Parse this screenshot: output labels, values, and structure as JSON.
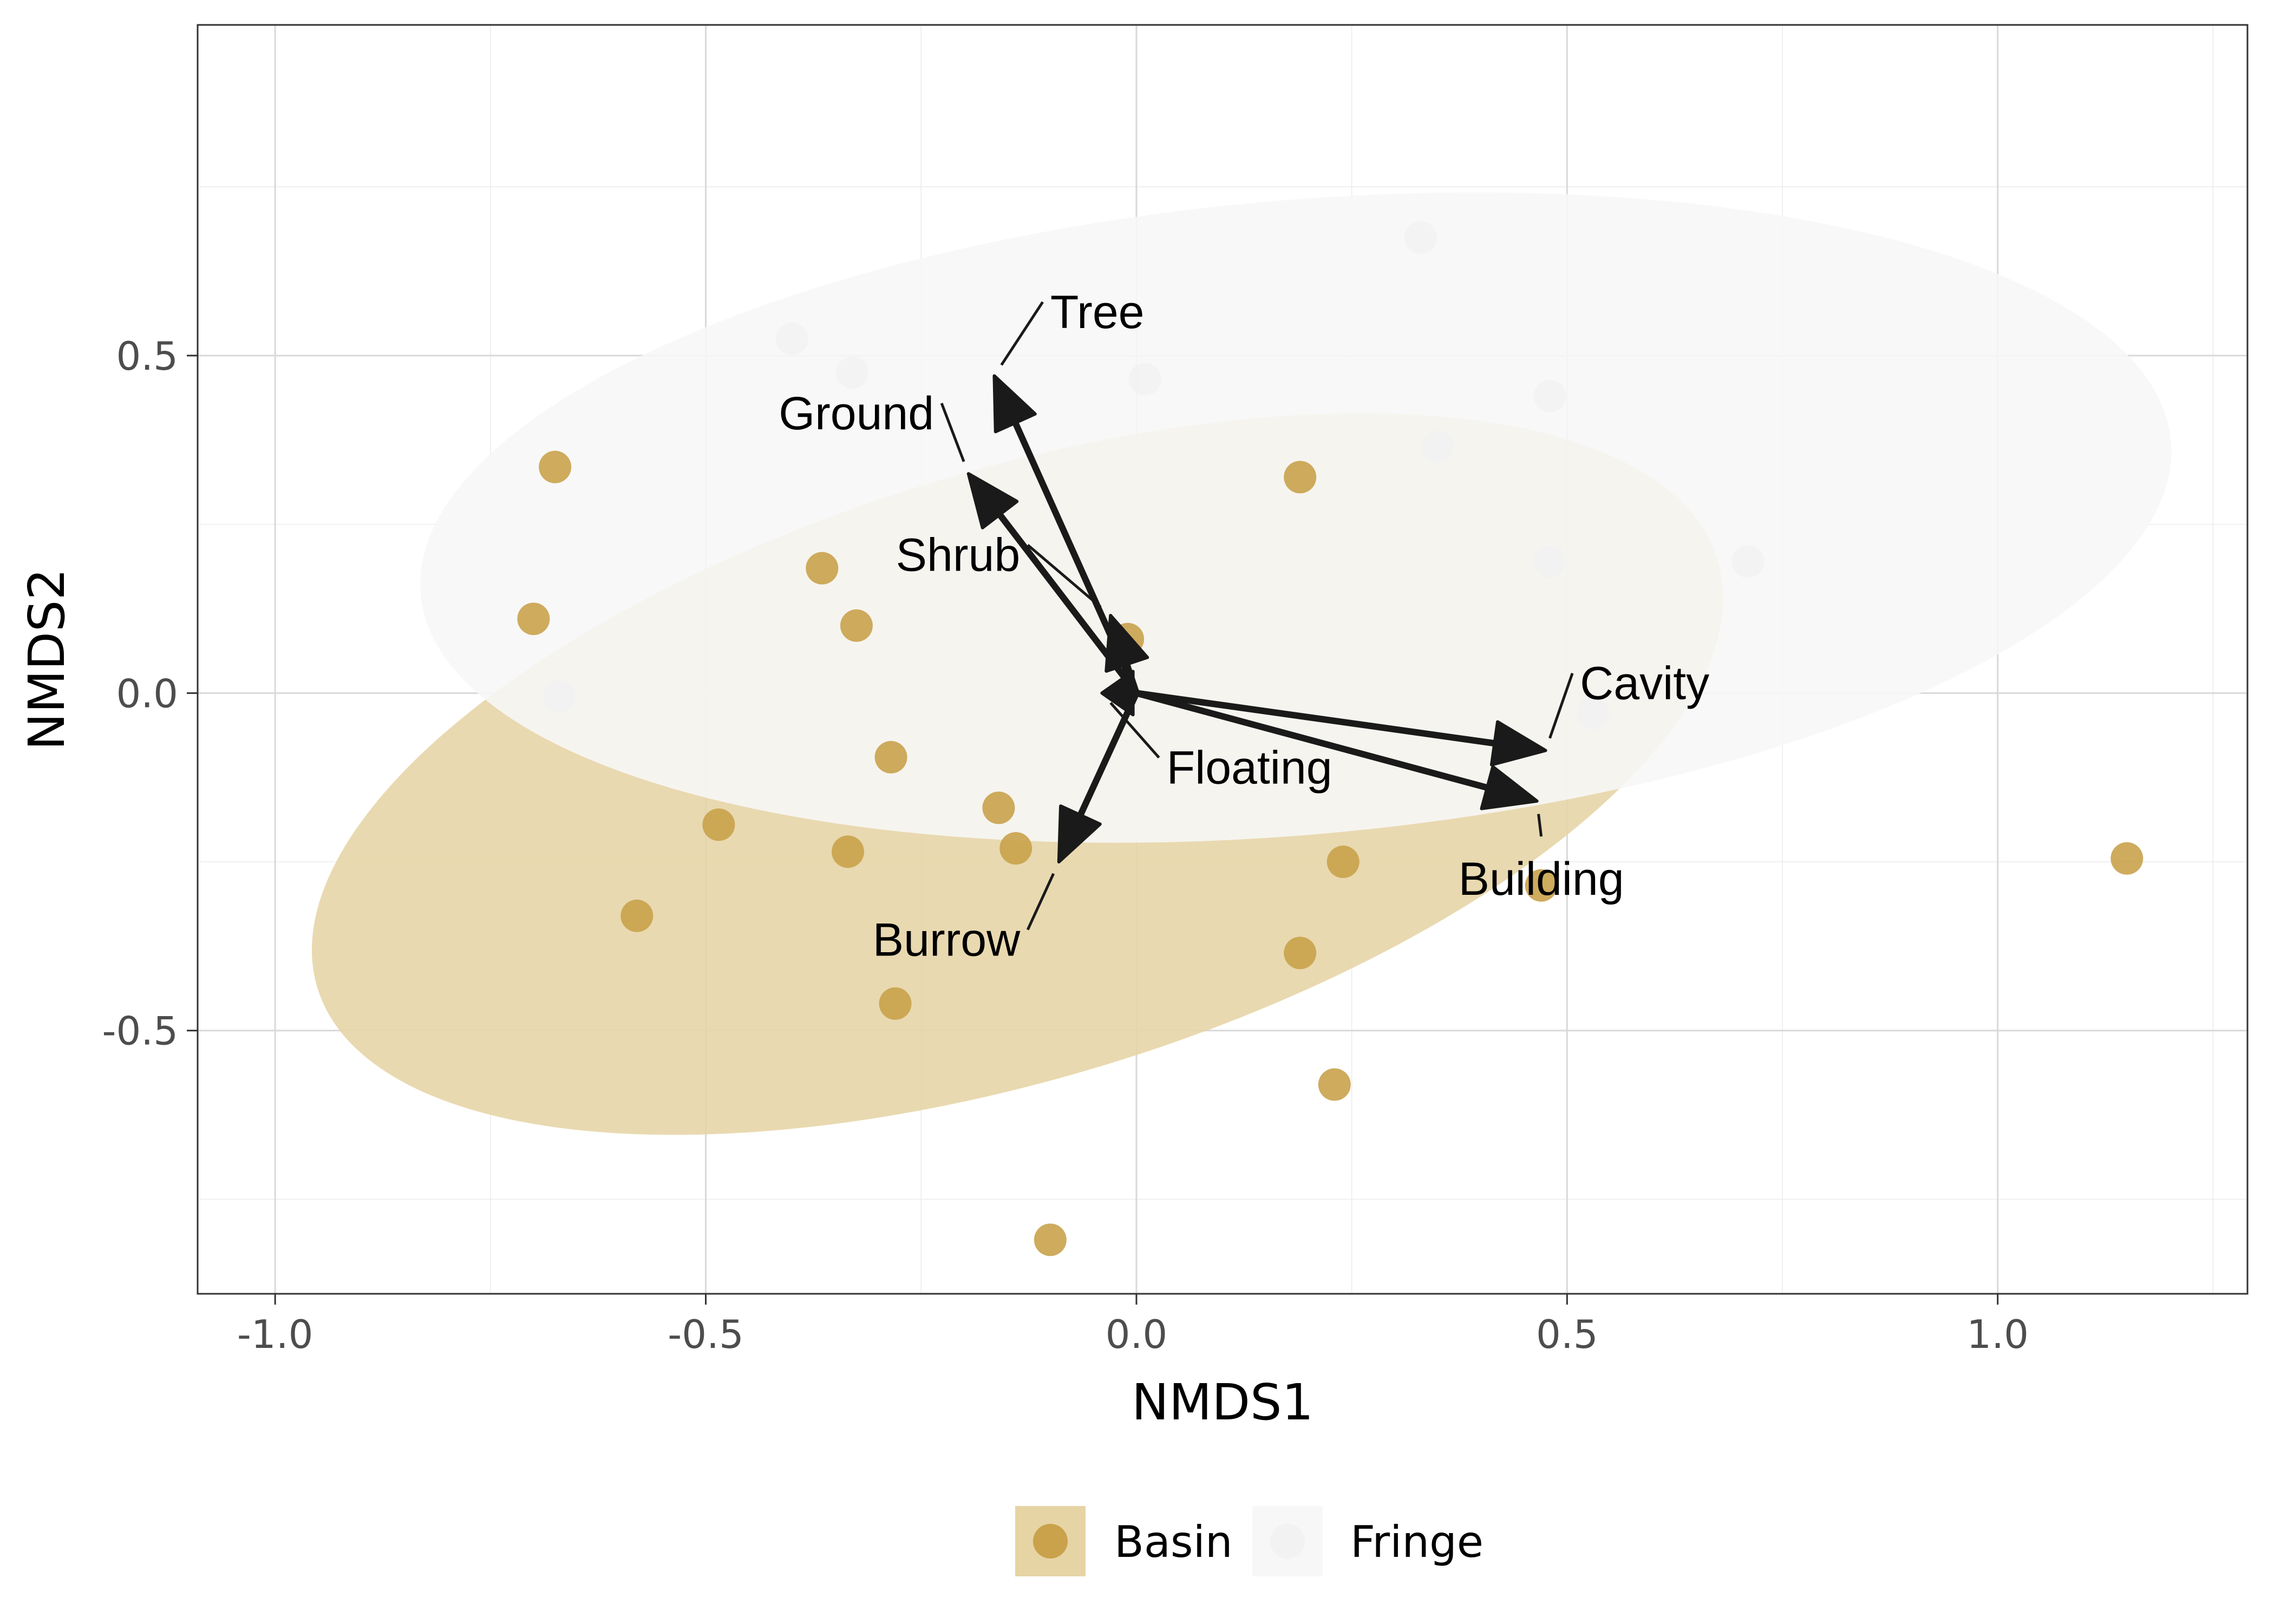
{
  "chart_data": {
    "type": "scatter",
    "xlabel": "NMDS1",
    "ylabel": "NMDS2",
    "xlim": [
      -1.09,
      1.29
    ],
    "ylim": [
      -0.89,
      0.99
    ],
    "x_ticks": [
      -1.0,
      -0.5,
      0.0,
      0.5,
      1.0
    ],
    "x_tick_labels": [
      "-1.0",
      "-0.5",
      "0.0",
      "0.5",
      "1.0"
    ],
    "y_ticks": [
      -0.5,
      0.0,
      0.5
    ],
    "y_tick_labels": [
      "-0.5",
      "0.0",
      "0.5"
    ],
    "grid": true,
    "legend_position": "bottom",
    "series": [
      {
        "name": "Basin",
        "color": "#c9a24b",
        "points": [
          {
            "x": -0.675,
            "y": 0.335
          },
          {
            "x": -0.7,
            "y": 0.11
          },
          {
            "x": -0.365,
            "y": 0.185
          },
          {
            "x": -0.325,
            "y": 0.1
          },
          {
            "x": -0.01,
            "y": 0.08
          },
          {
            "x": 0.19,
            "y": 0.32
          },
          {
            "x": -0.285,
            "y": -0.095
          },
          {
            "x": -0.16,
            "y": -0.17
          },
          {
            "x": -0.14,
            "y": -0.23
          },
          {
            "x": -0.335,
            "y": -0.235
          },
          {
            "x": -0.485,
            "y": -0.195
          },
          {
            "x": -0.58,
            "y": -0.33
          },
          {
            "x": 0.24,
            "y": -0.25
          },
          {
            "x": 0.47,
            "y": -0.285
          },
          {
            "x": 0.19,
            "y": -0.385
          },
          {
            "x": -0.28,
            "y": -0.46
          },
          {
            "x": 0.23,
            "y": -0.58
          },
          {
            "x": -0.1,
            "y": -0.81
          },
          {
            "x": 1.15,
            "y": -0.245
          }
        ],
        "ellipse": {
          "cx": -0.138,
          "cy": -0.12,
          "rx": 0.85,
          "ry": 0.45,
          "angle_deg": -17
        }
      },
      {
        "name": "Fringe",
        "color": "#f2f2f2",
        "points": [
          {
            "x": -0.4,
            "y": 0.525
          },
          {
            "x": -0.33,
            "y": 0.475
          },
          {
            "x": 0.01,
            "y": 0.465
          },
          {
            "x": 0.33,
            "y": 0.675
          },
          {
            "x": 0.35,
            "y": 0.365
          },
          {
            "x": 0.48,
            "y": 0.44
          },
          {
            "x": 0.48,
            "y": 0.195
          },
          {
            "x": 0.71,
            "y": 0.195
          },
          {
            "x": -0.67,
            "y": -0.005
          },
          {
            "x": 0.53,
            "y": -0.03
          }
        ],
        "ellipse": {
          "cx": 0.185,
          "cy": 0.26,
          "rx": 1.02,
          "ry": 0.47,
          "angle_deg": -5
        }
      }
    ],
    "vectors": [
      {
        "label": "Tree",
        "x": -0.165,
        "y": 0.47,
        "label_x": -0.1,
        "label_y": 0.565,
        "label_anchor": "start"
      },
      {
        "label": "Ground",
        "x": -0.195,
        "y": 0.325,
        "label_x": -0.235,
        "label_y": 0.415,
        "label_anchor": "end"
      },
      {
        "label": "Shrub",
        "x": -0.03,
        "y": 0.115,
        "label_x": -0.135,
        "label_y": 0.205,
        "label_anchor": "end"
      },
      {
        "label": "Floating",
        "x": -0.04,
        "y": 0.0,
        "label_x": 0.035,
        "label_y": -0.11,
        "label_anchor": "start"
      },
      {
        "label": "Cavity",
        "x": 0.475,
        "y": -0.085,
        "label_x": 0.515,
        "label_y": 0.015,
        "label_anchor": "start"
      },
      {
        "label": "Building",
        "x": 0.465,
        "y": -0.16,
        "label_x": 0.47,
        "label_y": -0.275,
        "label_anchor": "middle"
      },
      {
        "label": "Burrow",
        "x": -0.09,
        "y": -0.25,
        "label_x": -0.135,
        "label_y": -0.365,
        "label_anchor": "end"
      }
    ]
  },
  "legend": {
    "items": [
      {
        "label": "Basin",
        "key_bg": "#e6d4a5",
        "dot": "#c9a24b"
      },
      {
        "label": "Fringe",
        "key_bg": "#f7f7f7",
        "dot": "#f2f2f2"
      }
    ]
  }
}
